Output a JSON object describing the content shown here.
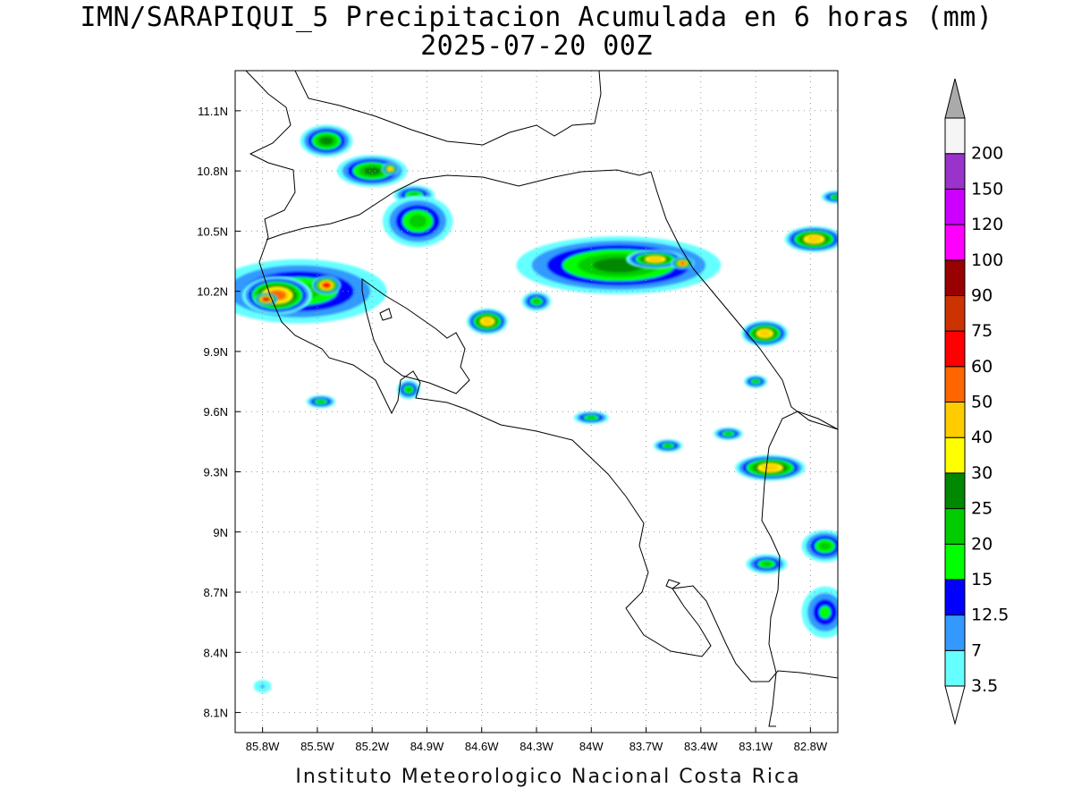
{
  "header": {
    "line1": "IMN/SARAPIQUI_5 Precipitacion Acumulada en 6 horas (mm)",
    "line2": "2025-07-20 00Z"
  },
  "footer": {
    "credit": "Instituto Meteorologico Nacional Costa Rica"
  },
  "chart_data": {
    "type": "heatmap",
    "title": "IMN/SARAPIQUI_5 Precipitacion Acumulada en 6 horas (mm)",
    "subtitle": "2025-07-20 00Z",
    "units": "mm",
    "x_range": [
      -85.95,
      -82.65
    ],
    "y_range": [
      8.0,
      11.3
    ],
    "x_ticks": [
      {
        "value": -85.8,
        "label": "85.8W"
      },
      {
        "value": -85.5,
        "label": "85.5W"
      },
      {
        "value": -85.2,
        "label": "85.2W"
      },
      {
        "value": -84.9,
        "label": "84.9W"
      },
      {
        "value": -84.6,
        "label": "84.6W"
      },
      {
        "value": -84.3,
        "label": "84.3W"
      },
      {
        "value": -84.0,
        "label": "84W"
      },
      {
        "value": -83.7,
        "label": "83.7W"
      },
      {
        "value": -83.4,
        "label": "83.4W"
      },
      {
        "value": -83.1,
        "label": "83.1W"
      },
      {
        "value": -82.8,
        "label": "82.8W"
      }
    ],
    "y_ticks": [
      {
        "value": 11.1,
        "label": "11.1N"
      },
      {
        "value": 10.8,
        "label": "10.8N"
      },
      {
        "value": 10.5,
        "label": "10.5N"
      },
      {
        "value": 10.2,
        "label": "10.2N"
      },
      {
        "value": 9.9,
        "label": "9.9N"
      },
      {
        "value": 9.6,
        "label": "9.6N"
      },
      {
        "value": 9.3,
        "label": "9.3N"
      },
      {
        "value": 9.0,
        "label": "9N"
      },
      {
        "value": 8.7,
        "label": "8.7N"
      },
      {
        "value": 8.4,
        "label": "8.4N"
      },
      {
        "value": 8.1,
        "label": "8.1N"
      }
    ],
    "grid": true,
    "colorbar": {
      "position": "right",
      "bins": [
        {
          "label": "3.5",
          "color": "#66ffff"
        },
        {
          "label": "7",
          "color": "#3399ff"
        },
        {
          "label": "12.5",
          "color": "#0000ff"
        },
        {
          "label": "15",
          "color": "#00ff00"
        },
        {
          "label": "20",
          "color": "#00cc00"
        },
        {
          "label": "25",
          "color": "#008800"
        },
        {
          "label": "30",
          "color": "#ffff00"
        },
        {
          "label": "40",
          "color": "#ffcc00"
        },
        {
          "label": "50",
          "color": "#ff6600"
        },
        {
          "label": "60",
          "color": "#ff0000"
        },
        {
          "label": "75",
          "color": "#cc3300"
        },
        {
          "label": "90",
          "color": "#990000"
        },
        {
          "label": "100",
          "color": "#ff00ff"
        },
        {
          "label": "120",
          "color": "#cc00ff"
        },
        {
          "label": "150",
          "color": "#9933cc"
        },
        {
          "label": "200",
          "color": "#f5f5f5"
        }
      ],
      "over_color": "#aaaaaa",
      "under_color": "#ffffff"
    },
    "precip_cells": [
      {
        "lon": -85.45,
        "lat": 10.95,
        "rx": 0.09,
        "ry": 0.05,
        "level": 5
      },
      {
        "lon": -85.2,
        "lat": 10.8,
        "rx": 0.12,
        "ry": 0.05,
        "level": 5
      },
      {
        "lon": -85.1,
        "lat": 10.81,
        "rx": 0.03,
        "ry": 0.02,
        "level": 7
      },
      {
        "lon": -84.97,
        "lat": 10.68,
        "rx": 0.07,
        "ry": 0.03,
        "level": 4
      },
      {
        "lon": -85.6,
        "lat": 10.2,
        "rx": 0.3,
        "ry": 0.1,
        "level": 4
      },
      {
        "lon": -85.72,
        "lat": 10.18,
        "rx": 0.12,
        "ry": 0.06,
        "level": 8
      },
      {
        "lon": -85.78,
        "lat": 10.16,
        "rx": 0.04,
        "ry": 0.02,
        "level": 10
      },
      {
        "lon": -85.45,
        "lat": 10.23,
        "rx": 0.05,
        "ry": 0.03,
        "level": 9
      },
      {
        "lon": -84.57,
        "lat": 10.05,
        "rx": 0.07,
        "ry": 0.04,
        "level": 7
      },
      {
        "lon": -84.3,
        "lat": 10.15,
        "rx": 0.05,
        "ry": 0.03,
        "level": 4
      },
      {
        "lon": -83.85,
        "lat": 10.33,
        "rx": 0.35,
        "ry": 0.09,
        "level": 5
      },
      {
        "lon": -83.65,
        "lat": 10.36,
        "rx": 0.1,
        "ry": 0.03,
        "level": 7
      },
      {
        "lon": -83.5,
        "lat": 10.34,
        "rx": 0.04,
        "ry": 0.02,
        "level": 8
      },
      {
        "lon": -83.05,
        "lat": 9.99,
        "rx": 0.08,
        "ry": 0.04,
        "level": 7
      },
      {
        "lon": -82.78,
        "lat": 10.46,
        "rx": 0.1,
        "ry": 0.04,
        "level": 7
      },
      {
        "lon": -83.02,
        "lat": 9.32,
        "rx": 0.12,
        "ry": 0.04,
        "level": 7
      },
      {
        "lon": -83.58,
        "lat": 9.43,
        "rx": 0.05,
        "ry": 0.02,
        "level": 4
      },
      {
        "lon": -83.04,
        "lat": 8.84,
        "rx": 0.07,
        "ry": 0.03,
        "level": 4
      },
      {
        "lon": -82.72,
        "lat": 8.93,
        "rx": 0.08,
        "ry": 0.05,
        "level": 4
      },
      {
        "lon": -85.48,
        "lat": 9.65,
        "rx": 0.05,
        "ry": 0.02,
        "level": 4
      },
      {
        "lon": -85.0,
        "lat": 9.71,
        "rx": 0.04,
        "ry": 0.03,
        "level": 4
      },
      {
        "lon": -83.1,
        "lat": 9.75,
        "rx": 0.04,
        "ry": 0.02,
        "level": 4
      },
      {
        "lon": -83.25,
        "lat": 9.49,
        "rx": 0.05,
        "ry": 0.02,
        "level": 4
      },
      {
        "lon": -84.0,
        "lat": 9.57,
        "rx": 0.06,
        "ry": 0.02,
        "level": 4
      },
      {
        "lon": -82.66,
        "lat": 10.67,
        "rx": 0.05,
        "ry": 0.02,
        "level": 4
      },
      {
        "lon": -84.95,
        "lat": 10.55,
        "rx": 0.12,
        "ry": 0.08,
        "level": 4
      },
      {
        "lon": -82.72,
        "lat": 8.6,
        "rx": 0.08,
        "ry": 0.08,
        "level": 3
      },
      {
        "lon": -85.8,
        "lat": 8.23,
        "rx": 0.03,
        "ry": 0.02,
        "level": 1
      }
    ]
  }
}
